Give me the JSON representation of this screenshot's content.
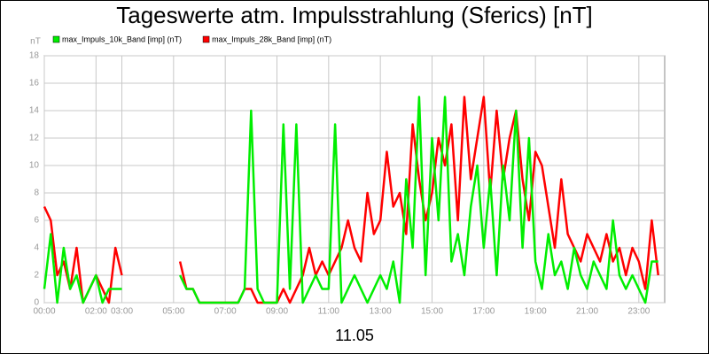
{
  "chart_data": {
    "type": "line",
    "title": "Tageswerte atm. Impulsstrahlung (Sferics) [nT]",
    "y_label": "nT",
    "x_label": "11.05",
    "x": [
      "00:00",
      "00:15",
      "00:30",
      "00:45",
      "01:00",
      "01:15",
      "01:30",
      "01:45",
      "02:00",
      "02:15",
      "02:30",
      "02:45",
      "03:00",
      "03:15",
      "03:30",
      "03:45",
      "04:00",
      "04:15",
      "04:30",
      "04:45",
      "05:00",
      "05:15",
      "05:30",
      "05:45",
      "06:00",
      "06:15",
      "06:30",
      "06:45",
      "07:00",
      "07:15",
      "07:30",
      "07:45",
      "08:00",
      "08:15",
      "08:30",
      "08:45",
      "09:00",
      "09:15",
      "09:30",
      "09:45",
      "10:00",
      "10:15",
      "10:30",
      "10:45",
      "11:00",
      "11:15",
      "11:30",
      "11:45",
      "12:00",
      "12:15",
      "12:30",
      "12:45",
      "13:00",
      "13:15",
      "13:30",
      "13:45",
      "14:00",
      "14:15",
      "14:30",
      "14:45",
      "15:00",
      "15:15",
      "15:30",
      "15:45",
      "16:00",
      "16:15",
      "16:30",
      "16:45",
      "17:00",
      "17:15",
      "17:30",
      "17:45",
      "18:00",
      "18:15",
      "18:30",
      "18:45",
      "19:00",
      "19:15",
      "19:30",
      "19:45",
      "20:00",
      "20:15",
      "20:30",
      "20:45",
      "21:00",
      "21:15",
      "21:30",
      "21:45",
      "22:00",
      "22:15",
      "22:30",
      "22:45",
      "23:00",
      "23:15",
      "23:30",
      "23:45"
    ],
    "series": [
      {
        "name": "max_Impuls_28k_Band [imp] (nT)",
        "color": "#ff0000",
        "values": [
          7,
          6,
          2,
          3,
          1,
          4,
          0,
          1,
          2,
          1,
          0,
          4,
          2,
          null,
          null,
          null,
          null,
          null,
          null,
          null,
          null,
          3,
          1,
          1,
          0,
          0,
          0,
          0,
          0,
          0,
          0,
          1,
          1,
          0,
          0,
          0,
          0,
          1,
          0,
          1,
          2,
          4,
          2,
          3,
          2,
          3,
          4,
          6,
          4,
          3,
          8,
          5,
          6,
          11,
          7,
          8,
          5,
          13,
          9,
          6,
          8,
          12,
          10,
          13,
          6,
          15,
          9,
          12,
          15,
          8,
          14,
          9,
          12,
          14,
          9,
          6,
          11,
          10,
          7,
          4,
          9,
          5,
          4,
          3,
          5,
          4,
          3,
          5,
          3,
          4,
          2,
          4,
          3,
          1,
          6,
          2
        ]
      },
      {
        "name": "max_Impuls_10k_Band [imp] (nT)",
        "color": "#00ee00",
        "values": [
          1,
          5,
          0,
          4,
          1,
          2,
          0,
          1,
          2,
          0,
          1,
          1,
          1,
          null,
          null,
          null,
          null,
          null,
          null,
          null,
          null,
          2,
          1,
          1,
          0,
          0,
          0,
          0,
          0,
          0,
          0,
          1,
          14,
          1,
          0,
          0,
          0,
          13,
          1,
          13,
          0,
          1,
          2,
          1,
          1,
          13,
          0,
          1,
          2,
          1,
          0,
          1,
          2,
          1,
          3,
          0,
          9,
          4,
          15,
          2,
          12,
          6,
          15,
          3,
          5,
          2,
          7,
          10,
          4,
          9,
          2,
          10,
          6,
          14,
          4,
          12,
          3,
          1,
          5,
          2,
          3,
          1,
          4,
          2,
          1,
          3,
          2,
          1,
          6,
          2,
          1,
          2,
          1,
          0,
          3,
          3
        ]
      }
    ],
    "xlim": [
      "00:00",
      "24:00"
    ],
    "xticks": [
      "00:00",
      "02:00",
      "03:00",
      "05:00",
      "07:00",
      "09:00",
      "11:00",
      "13:00",
      "15:00",
      "17:00",
      "19:00",
      "21:00",
      "23:00"
    ],
    "ylim": [
      0,
      18
    ],
    "yticks": [
      0,
      2,
      4,
      6,
      8,
      10,
      12,
      14,
      16,
      18
    ],
    "grid": true
  }
}
